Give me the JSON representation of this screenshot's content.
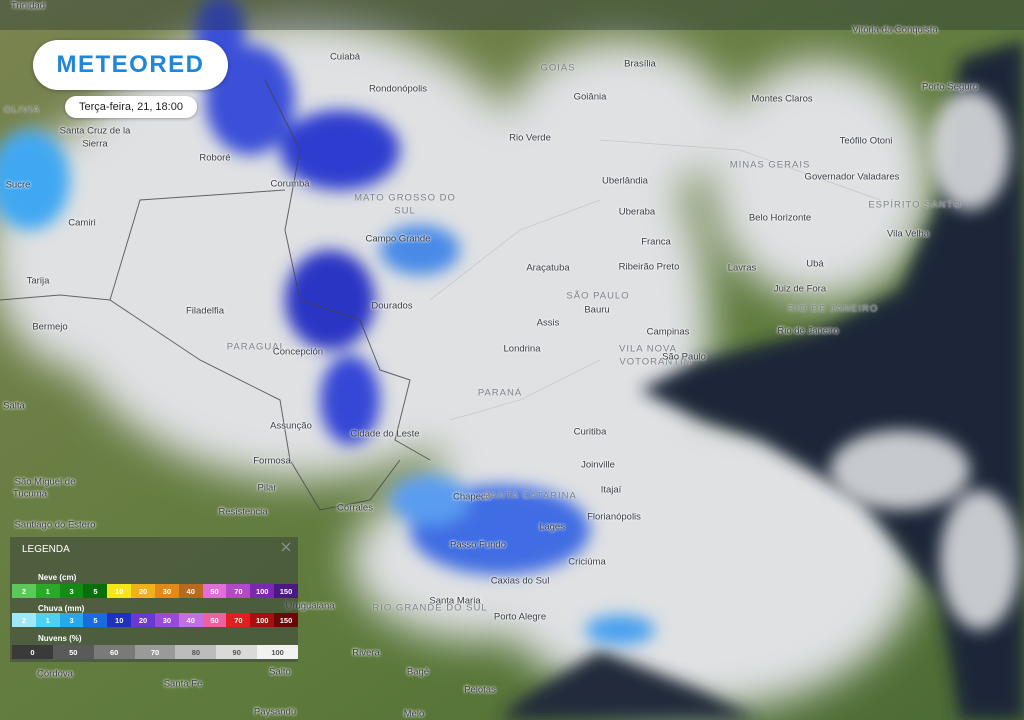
{
  "brand": "METEORED",
  "timestamp": "Terça-feira, 21, 18:00",
  "places": [
    "Trinidad",
    "Vitória da Conquista",
    "Cuiabá",
    "Brasília",
    "GOIÁS",
    "Goiânia",
    "Porto Seguro",
    "Rondonópolis",
    "Montes Claros",
    "OLIVIA",
    "Santa Cruz de la",
    "Sierra",
    "Rio Verde",
    "Teófilo Otoni",
    "MINAS GERAIS",
    "Roboré",
    "Sucre",
    "Uberlândia",
    "Corumbá",
    "Governador Valadares",
    "MATO GROSSO DO",
    "SUL",
    "ESPÍRITO SANTO",
    "Uberaba",
    "Camiri",
    "Belo Horizonte",
    "Vila Velha",
    "Campo Grande",
    "Franca",
    "Tarija",
    "Araçatuba",
    "Ribeirão Preto",
    "Lavras",
    "Ubá",
    "Juiz de Fora",
    "SÃO PAULO",
    "Bauru",
    "RIO DE JANEIRO",
    "Dourados",
    "Filadelfia",
    "Bermejo",
    "Assis",
    "Campinas",
    "Rio de Janeiro",
    "PARAGUAI",
    "Concepción",
    "Londrina",
    "VILA NOVA",
    "VOTORANTIM",
    "São Paulo",
    "PARANÁ",
    "Salta",
    "Assunção",
    "Cidade do Leste",
    "Curitiba",
    "Formosa",
    "Joinville",
    "São Miguel de",
    "Tucumá",
    "Pilar",
    "Itajaí",
    "Chapecó",
    "SANTA CATARINA",
    "Resistencia",
    "Corrales",
    "Florianópolis",
    "Santiago do Estero",
    "Lages",
    "Passo Fundo",
    "Criciúma",
    "Caxias do Sul",
    "Uruguaiana",
    "Santa Maria",
    "RIO GRANDE DO SUL",
    "Porto Alegre",
    "Rivera",
    "Salto",
    "Córdova",
    "Santa Fe",
    "Bagé",
    "Pelotas",
    "Paysandú",
    "Melo"
  ],
  "legend": {
    "title": "LEGENDA",
    "scales": [
      {
        "name": "Neve (cm)",
        "steps": [
          "2",
          "1",
          "3",
          "5",
          "10",
          "20",
          "30",
          "40",
          "50",
          "70",
          "100",
          "150"
        ]
      },
      {
        "name": "Chuva (mm)",
        "steps": [
          "2",
          "1",
          "3",
          "5",
          "10",
          "20",
          "30",
          "40",
          "50",
          "70",
          "100",
          "150"
        ]
      },
      {
        "name": "Nuvens (%)",
        "steps": [
          "0",
          "50",
          "60",
          "70",
          "80",
          "90",
          "100"
        ]
      }
    ]
  }
}
